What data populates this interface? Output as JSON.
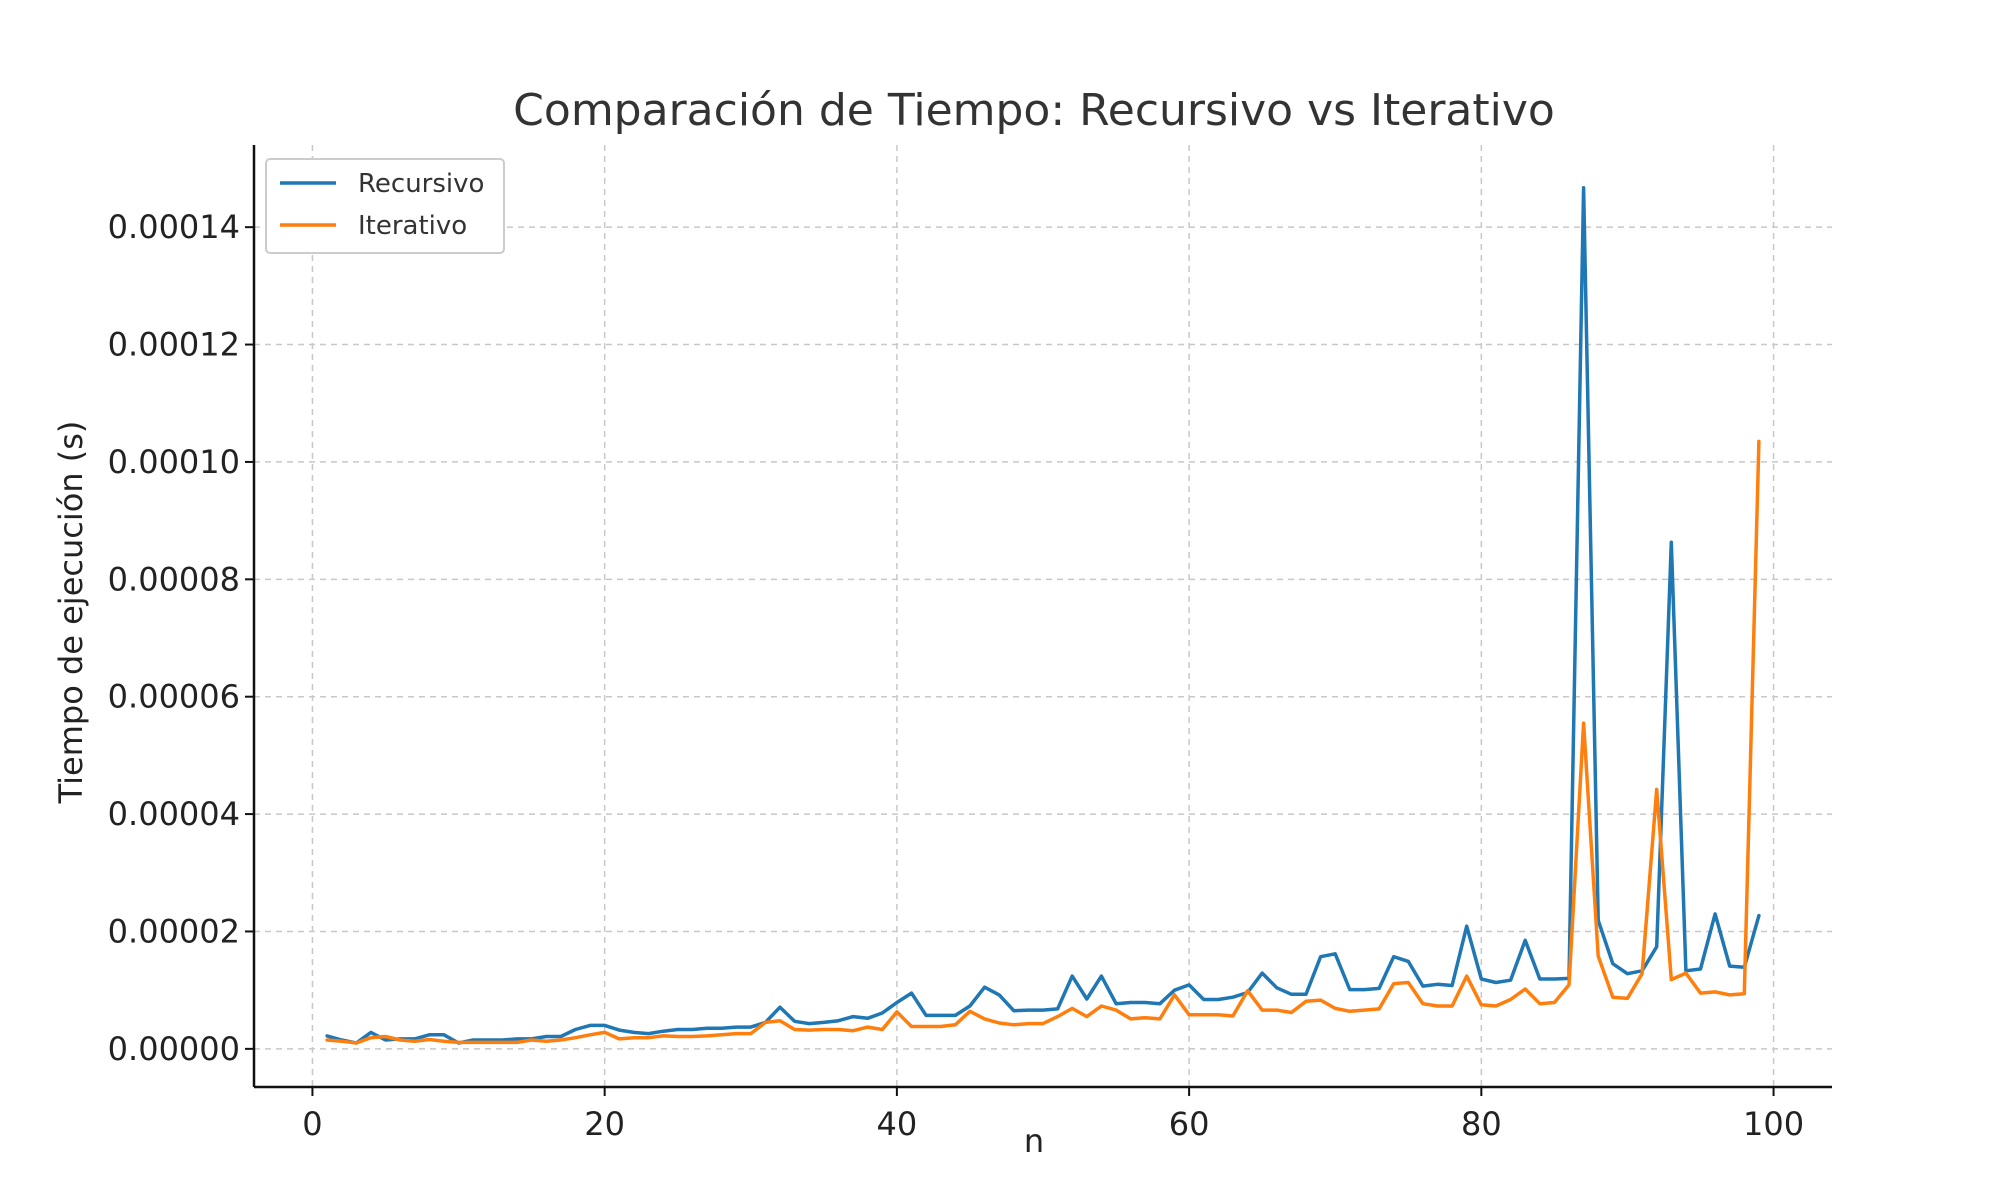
{
  "chart_data": {
    "type": "line",
    "title": "Comparación de Tiempo: Recursivo vs Iterativo",
    "xlabel": "n",
    "ylabel": "Tiempo de ejecución (s)",
    "xlim": [
      -4,
      104
    ],
    "ylim": [
      -6.5e-06,
      0.000154
    ],
    "x_ticks": [
      0,
      20,
      40,
      60,
      80,
      100
    ],
    "x_tick_labels": [
      "0",
      "20",
      "40",
      "60",
      "80",
      "100"
    ],
    "y_ticks": [
      0,
      2e-05,
      4e-05,
      6e-05,
      8e-05,
      0.0001,
      0.00012,
      0.00014
    ],
    "y_tick_labels": [
      "0.00000",
      "0.00002",
      "0.00004",
      "0.00006",
      "0.00008",
      "0.00010",
      "0.00012",
      "0.00014"
    ],
    "grid": true,
    "legend_position": "top-left",
    "x": [
      1,
      2,
      3,
      4,
      5,
      6,
      7,
      8,
      9,
      10,
      11,
      12,
      13,
      14,
      15,
      16,
      17,
      18,
      19,
      20,
      21,
      22,
      23,
      24,
      25,
      26,
      27,
      28,
      29,
      30,
      31,
      32,
      33,
      34,
      35,
      36,
      37,
      38,
      39,
      40,
      41,
      42,
      43,
      44,
      45,
      46,
      47,
      48,
      49,
      50,
      51,
      52,
      53,
      54,
      55,
      56,
      57,
      58,
      59,
      60,
      61,
      62,
      63,
      64,
      65,
      66,
      67,
      68,
      69,
      70,
      71,
      72,
      73,
      74,
      75,
      76,
      77,
      78,
      79,
      80,
      81,
      82,
      83,
      84,
      85,
      86,
      87,
      88,
      89,
      90,
      91,
      92,
      93,
      94,
      95,
      96,
      97,
      98,
      99
    ],
    "series": [
      {
        "name": "Recursivo",
        "color": "#1f77b4",
        "values": [
          2.2e-06,
          1.5e-06,
          1e-06,
          2.8e-06,
          1.5e-06,
          1.7e-06,
          1.7e-06,
          2.4e-06,
          2.4e-06,
          1e-06,
          1.5e-06,
          1.5e-06,
          1.5e-06,
          1.7e-06,
          1.7e-06,
          2.1e-06,
          2.1e-06,
          3.3e-06,
          4e-06,
          4e-06,
          3.2e-06,
          2.8e-06,
          2.6e-06,
          3e-06,
          3.3e-06,
          3.3e-06,
          3.5e-06,
          3.5e-06,
          3.7e-06,
          3.7e-06,
          4.5e-06,
          7.1e-06,
          4.7e-06,
          4.3e-06,
          4.5e-06,
          4.8e-06,
          5.5e-06,
          5.2e-06,
          6.1e-06,
          7.9e-06,
          9.5e-06,
          5.7e-06,
          5.7e-06,
          5.7e-06,
          7.3e-06,
          1.05e-05,
          9.2e-06,
          6.5e-06,
          6.6e-06,
          6.6e-06,
          6.8e-06,
          1.24e-05,
          8.5e-06,
          1.24e-05,
          7.7e-06,
          7.9e-06,
          7.9e-06,
          7.7e-06,
          1e-05,
          1.09e-05,
          8.4e-06,
          8.4e-06,
          8.8e-06,
          9.6e-06,
          1.29e-05,
          1.04e-05,
          9.3e-06,
          9.3e-06,
          1.57e-05,
          1.62e-05,
          1.01e-05,
          1.01e-05,
          1.03e-05,
          1.57e-05,
          1.49e-05,
          1.07e-05,
          1.1e-05,
          1.08e-05,
          2.09e-05,
          1.19e-05,
          1.13e-05,
          1.17e-05,
          1.85e-05,
          1.19e-05,
          1.19e-05,
          1.2e-05,
          0.0001467,
          2.19e-05,
          1.45e-05,
          1.28e-05,
          1.33e-05,
          1.74e-05,
          8.63e-05,
          1.33e-05,
          1.36e-05,
          2.3e-05,
          1.41e-05,
          1.39e-05,
          2.27e-05
        ]
      },
      {
        "name": "Iterativo",
        "color": "#ff7f0e",
        "values": [
          1.5e-06,
          1.3e-06,
          1e-06,
          1.9e-06,
          2.1e-06,
          1.5e-06,
          1.3e-06,
          1.6e-06,
          1.3e-06,
          1.1e-06,
          1.1e-06,
          1.1e-06,
          1.1e-06,
          1.1e-06,
          1.5e-06,
          1.3e-06,
          1.5e-06,
          1.9e-06,
          2.4e-06,
          2.8e-06,
          1.7e-06,
          1.9e-06,
          1.9e-06,
          2.2e-06,
          2.1e-06,
          2.1e-06,
          2.2e-06,
          2.4e-06,
          2.6e-06,
          2.6e-06,
          4.5e-06,
          4.8e-06,
          3.3e-06,
          3.2e-06,
          3.3e-06,
          3.3e-06,
          3.1e-06,
          3.7e-06,
          3.3e-06,
          6.3e-06,
          3.8e-06,
          3.8e-06,
          3.8e-06,
          4.1e-06,
          6.4e-06,
          5.1e-06,
          4.4e-06,
          4.1e-06,
          4.3e-06,
          4.3e-06,
          5.5e-06,
          6.9e-06,
          5.5e-06,
          7.3e-06,
          6.6e-06,
          5.1e-06,
          5.3e-06,
          5.1e-06,
          9.2e-06,
          5.8e-06,
          5.8e-06,
          5.8e-06,
          5.6e-06,
          9.9e-06,
          6.6e-06,
          6.6e-06,
          6.2e-06,
          8.1e-06,
          8.3e-06,
          6.9e-06,
          6.4e-06,
          6.6e-06,
          6.8e-06,
          1.11e-05,
          1.13e-05,
          7.7e-06,
          7.3e-06,
          7.3e-06,
          1.24e-05,
          7.5e-06,
          7.3e-06,
          8.4e-06,
          1.02e-05,
          7.7e-06,
          7.9e-06,
          1.09e-05,
          5.55e-05,
          1.58e-05,
          8.8e-06,
          8.6e-06,
          1.28e-05,
          4.42e-05,
          1.18e-05,
          1.29e-05,
          9.5e-06,
          9.7e-06,
          9.2e-06,
          9.4e-06,
          0.0001035
        ]
      }
    ]
  }
}
